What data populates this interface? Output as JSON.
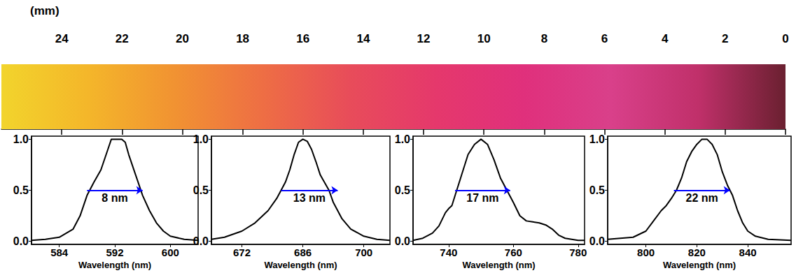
{
  "chart_data": [
    {
      "type": "strip",
      "xlabel": "(mm)",
      "xlim": [
        26,
        0
      ],
      "xticks": [
        24,
        22,
        20,
        18,
        16,
        14,
        12,
        10,
        8,
        6,
        4,
        2,
        0
      ],
      "colors": [
        "#f2d42c",
        "#f4b62a",
        "#f19232",
        "#ee6e44",
        "#e84c5a",
        "#e5386c",
        "#e0307c",
        "#d9408a",
        "#c0306a",
        "#6a2030"
      ]
    },
    {
      "type": "line",
      "xlabel": "Wavelength (nm)",
      "color": "#000000",
      "x": [
        580,
        582,
        584,
        586,
        587,
        588,
        589,
        590,
        591,
        591.5,
        593,
        593.5,
        594,
        595,
        596,
        597,
        598,
        599,
        600,
        602,
        604
      ],
      "values": [
        0.01,
        0.02,
        0.04,
        0.12,
        0.25,
        0.45,
        0.58,
        0.7,
        0.9,
        1.0,
        1.0,
        0.97,
        0.85,
        0.65,
        0.45,
        0.3,
        0.18,
        0.1,
        0.05,
        0.02,
        0.01
      ],
      "xlim": [
        580,
        604
      ],
      "xticks": [
        584,
        592,
        600
      ],
      "ylim": [
        -0.03,
        1.03
      ],
      "yticks": [
        {
          "value": 0,
          "label": "0.0"
        },
        {
          "value": 0.5,
          "label": "0.5"
        },
        {
          "value": 1,
          "label": "1.0"
        }
      ],
      "annotations": [
        {
          "text": "8 nm",
          "x": [
            588,
            596
          ],
          "y": 0.5,
          "color": "#0000ff"
        }
      ]
    },
    {
      "type": "line",
      "xlabel": "Wavelength (nm)",
      "color": "#000000",
      "x": [
        665,
        668,
        672,
        675,
        678,
        680,
        681,
        682,
        683,
        684,
        685,
        686,
        687,
        688,
        689,
        690,
        692,
        693,
        695,
        697,
        700,
        703,
        706
      ],
      "values": [
        0.02,
        0.04,
        0.1,
        0.18,
        0.3,
        0.42,
        0.5,
        0.58,
        0.7,
        0.85,
        0.97,
        1.0,
        0.98,
        0.9,
        0.78,
        0.65,
        0.5,
        0.38,
        0.22,
        0.12,
        0.05,
        0.02,
        0.01
      ],
      "xlim": [
        665,
        706
      ],
      "xticks": [
        672,
        686,
        700
      ],
      "ylim": [
        -0.03,
        1.03
      ],
      "yticks": [
        {
          "value": 0,
          "label": "0.0"
        },
        {
          "value": 0.5,
          "label": "0.5"
        },
        {
          "value": 1,
          "label": "1.0"
        }
      ],
      "annotations": [
        {
          "text": "13 nm",
          "x": [
            681,
            694
          ],
          "y": 0.5,
          "color": "#0000ff"
        }
      ]
    },
    {
      "type": "line",
      "xlabel": "Wavelength (nm)",
      "color": "#000000",
      "x": [
        729,
        732,
        735,
        737,
        739,
        740,
        741,
        742,
        744,
        746,
        748,
        750,
        752,
        754,
        756,
        758,
        760,
        762,
        764,
        766,
        768,
        770,
        772,
        774,
        776,
        780,
        782
      ],
      "values": [
        0.01,
        0.03,
        0.08,
        0.15,
        0.28,
        0.32,
        0.35,
        0.45,
        0.65,
        0.85,
        0.95,
        1.0,
        0.95,
        0.8,
        0.62,
        0.5,
        0.38,
        0.25,
        0.2,
        0.19,
        0.18,
        0.16,
        0.12,
        0.06,
        0.03,
        0.01,
        0.01
      ],
      "xlim": [
        729,
        782
      ],
      "xticks": [
        740,
        760,
        780
      ],
      "ylim": [
        -0.03,
        1.03
      ],
      "yticks": [
        {
          "value": 0,
          "label": "0.0"
        },
        {
          "value": 0.5,
          "label": "0.5"
        },
        {
          "value": 1,
          "label": "1.0"
        }
      ],
      "annotations": [
        {
          "text": "17 nm",
          "x": [
            742,
            759
          ],
          "y": 0.5,
          "color": "#0000ff"
        }
      ]
    },
    {
      "type": "line",
      "xlabel": "Wavelength (nm)",
      "color": "#000000",
      "x": [
        785,
        795,
        800,
        803,
        806,
        808,
        810,
        812,
        814,
        816,
        818,
        820,
        822,
        824,
        826,
        828,
        830,
        832,
        834,
        836,
        838,
        840,
        843,
        848,
        857
      ],
      "values": [
        0.02,
        0.04,
        0.1,
        0.2,
        0.3,
        0.35,
        0.42,
        0.5,
        0.62,
        0.78,
        0.88,
        0.95,
        1.0,
        1.0,
        0.95,
        0.85,
        0.68,
        0.55,
        0.45,
        0.3,
        0.18,
        0.1,
        0.05,
        0.02,
        0.01
      ],
      "xlim": [
        785,
        857
      ],
      "xticks": [
        800,
        820,
        840
      ],
      "ylim": [
        -0.03,
        1.03
      ],
      "yticks": [
        {
          "value": 0,
          "label": "0.0"
        },
        {
          "value": 0.5,
          "label": "0.5"
        },
        {
          "value": 1,
          "label": "1.0"
        }
      ],
      "annotations": [
        {
          "text": "22 nm",
          "x": [
            811,
            833
          ],
          "y": 0.5,
          "color": "#0000ff"
        }
      ]
    }
  ]
}
